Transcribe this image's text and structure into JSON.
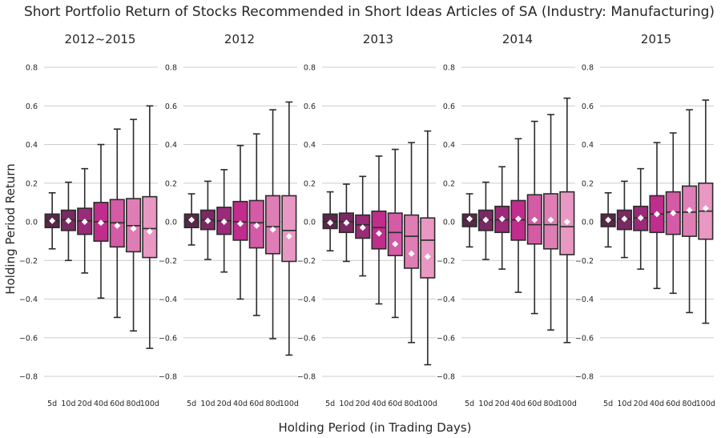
{
  "chart_data": {
    "type": "box",
    "title": "Short Portfolio Return of Stocks Recommended in Short Ideas Articles of SA (Industry: Manufacturing)",
    "xlabel": "Holding Period (in Trading Days)",
    "ylabel": "Holding Period Return",
    "ylim": [
      -0.9,
      0.9
    ],
    "yticks": [
      -0.8,
      -0.6,
      -0.4,
      -0.2,
      0.0,
      0.2,
      0.4,
      0.6,
      0.8
    ],
    "ytick_labels": [
      "−0.8",
      "−0.6",
      "−0.4",
      "−0.2",
      "0.0",
      "0.2",
      "0.4",
      "0.6",
      "0.8"
    ],
    "categories": [
      "5d",
      "10d",
      "20d",
      "40d",
      "60d",
      "80d",
      "100d"
    ],
    "grid": "horizontal",
    "colors": [
      "#5a2748",
      "#7a2a62",
      "#9b2a79",
      "#c02d8c",
      "#d45ba5",
      "#df7db5",
      "#e898c3"
    ],
    "mean_marker_color": "#ffffff",
    "line_color": "#2b2b2b",
    "panels": [
      {
        "title": "2012~2015",
        "boxes": [
          {
            "whislo": -0.14,
            "q1": -0.03,
            "med": 0.005,
            "q3": 0.04,
            "whishi": 0.15,
            "mean": 0.005
          },
          {
            "whislo": -0.2,
            "q1": -0.045,
            "med": 0.01,
            "q3": 0.06,
            "whishi": 0.205,
            "mean": 0.005
          },
          {
            "whislo": -0.265,
            "q1": -0.065,
            "med": 0.005,
            "q3": 0.07,
            "whishi": 0.275,
            "mean": 0.0
          },
          {
            "whislo": -0.395,
            "q1": -0.1,
            "med": 0.0,
            "q3": 0.1,
            "whishi": 0.4,
            "mean": -0.005
          },
          {
            "whislo": -0.495,
            "q1": -0.13,
            "med": -0.005,
            "q3": 0.115,
            "whishi": 0.48,
            "mean": -0.02
          },
          {
            "whislo": -0.565,
            "q1": -0.155,
            "med": -0.02,
            "q3": 0.12,
            "whishi": 0.53,
            "mean": -0.035
          },
          {
            "whislo": -0.655,
            "q1": -0.185,
            "med": -0.035,
            "q3": 0.13,
            "whishi": 0.6,
            "mean": -0.05
          }
        ]
      },
      {
        "title": "2012",
        "boxes": [
          {
            "whislo": -0.12,
            "q1": -0.03,
            "med": 0.01,
            "q3": 0.04,
            "whishi": 0.145,
            "mean": 0.01
          },
          {
            "whislo": -0.195,
            "q1": -0.04,
            "med": 0.01,
            "q3": 0.06,
            "whishi": 0.21,
            "mean": 0.005
          },
          {
            "whislo": -0.26,
            "q1": -0.065,
            "med": 0.005,
            "q3": 0.075,
            "whishi": 0.27,
            "mean": 0.0
          },
          {
            "whislo": -0.4,
            "q1": -0.095,
            "med": 0.0,
            "q3": 0.105,
            "whishi": 0.395,
            "mean": -0.01
          },
          {
            "whislo": -0.485,
            "q1": -0.135,
            "med": -0.005,
            "q3": 0.11,
            "whishi": 0.455,
            "mean": -0.02
          },
          {
            "whislo": -0.605,
            "q1": -0.165,
            "med": -0.025,
            "q3": 0.135,
            "whishi": 0.58,
            "mean": -0.04
          },
          {
            "whislo": -0.69,
            "q1": -0.205,
            "med": -0.045,
            "q3": 0.135,
            "whishi": 0.62,
            "mean": -0.075
          }
        ]
      },
      {
        "title": "2013",
        "boxes": [
          {
            "whislo": -0.15,
            "q1": -0.035,
            "med": 0.0,
            "q3": 0.04,
            "whishi": 0.155,
            "mean": -0.005
          },
          {
            "whislo": -0.205,
            "q1": -0.055,
            "med": 0.0,
            "q3": 0.045,
            "whishi": 0.195,
            "mean": -0.005
          },
          {
            "whislo": -0.28,
            "q1": -0.085,
            "med": -0.015,
            "q3": 0.035,
            "whishi": 0.235,
            "mean": -0.03
          },
          {
            "whislo": -0.425,
            "q1": -0.14,
            "med": -0.03,
            "q3": 0.055,
            "whishi": 0.34,
            "mean": -0.06
          },
          {
            "whislo": -0.495,
            "q1": -0.175,
            "med": -0.055,
            "q3": 0.045,
            "whishi": 0.375,
            "mean": -0.115
          },
          {
            "whislo": -0.625,
            "q1": -0.24,
            "med": -0.075,
            "q3": 0.035,
            "whishi": 0.41,
            "mean": -0.165
          },
          {
            "whislo": -0.74,
            "q1": -0.29,
            "med": -0.095,
            "q3": 0.02,
            "whishi": 0.47,
            "mean": -0.18
          }
        ]
      },
      {
        "title": "2014",
        "boxes": [
          {
            "whislo": -0.13,
            "q1": -0.025,
            "med": 0.01,
            "q3": 0.04,
            "whishi": 0.145,
            "mean": 0.015
          },
          {
            "whislo": -0.195,
            "q1": -0.045,
            "med": 0.01,
            "q3": 0.06,
            "whishi": 0.205,
            "mean": 0.01
          },
          {
            "whislo": -0.245,
            "q1": -0.055,
            "med": 0.01,
            "q3": 0.08,
            "whishi": 0.285,
            "mean": 0.015
          },
          {
            "whislo": -0.365,
            "q1": -0.095,
            "med": 0.01,
            "q3": 0.11,
            "whishi": 0.43,
            "mean": 0.015
          },
          {
            "whislo": -0.475,
            "q1": -0.115,
            "med": -0.015,
            "q3": 0.14,
            "whishi": 0.52,
            "mean": 0.01
          },
          {
            "whislo": -0.56,
            "q1": -0.14,
            "med": -0.015,
            "q3": 0.145,
            "whishi": 0.555,
            "mean": 0.01
          },
          {
            "whislo": -0.625,
            "q1": -0.17,
            "med": -0.025,
            "q3": 0.155,
            "whishi": 0.64,
            "mean": 0.0
          }
        ]
      },
      {
        "title": "2015",
        "boxes": [
          {
            "whislo": -0.13,
            "q1": -0.025,
            "med": 0.01,
            "q3": 0.04,
            "whishi": 0.15,
            "mean": 0.01
          },
          {
            "whislo": -0.185,
            "q1": -0.04,
            "med": 0.015,
            "q3": 0.06,
            "whishi": 0.21,
            "mean": 0.015
          },
          {
            "whislo": -0.245,
            "q1": -0.045,
            "med": 0.02,
            "q3": 0.08,
            "whishi": 0.275,
            "mean": 0.02
          },
          {
            "whislo": -0.345,
            "q1": -0.055,
            "med": 0.04,
            "q3": 0.135,
            "whishi": 0.41,
            "mean": 0.04
          },
          {
            "whislo": -0.37,
            "q1": -0.065,
            "med": 0.05,
            "q3": 0.155,
            "whishi": 0.46,
            "mean": 0.045
          },
          {
            "whislo": -0.47,
            "q1": -0.075,
            "med": 0.05,
            "q3": 0.185,
            "whishi": 0.58,
            "mean": 0.06
          },
          {
            "whislo": -0.525,
            "q1": -0.09,
            "med": 0.055,
            "q3": 0.2,
            "whishi": 0.63,
            "mean": 0.07
          }
        ]
      }
    ]
  }
}
